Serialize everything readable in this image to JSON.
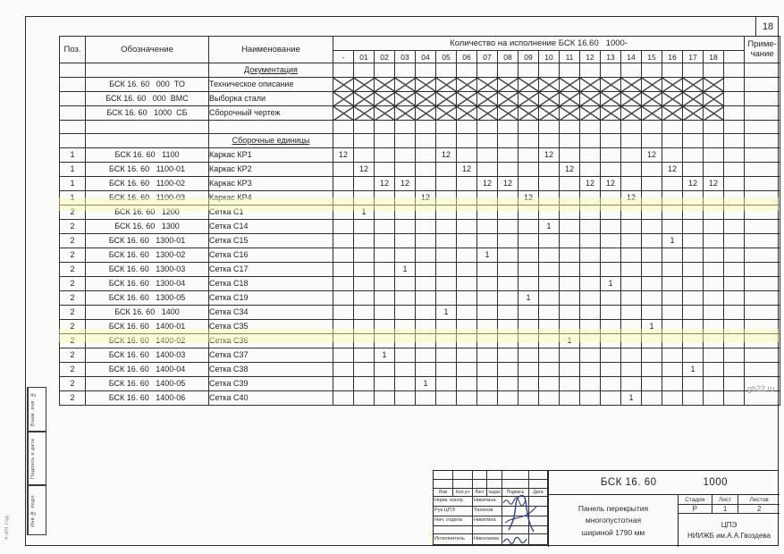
{
  "page": {
    "number": "18",
    "watermark": "gb22.ru",
    "corner_text": "4-вN год."
  },
  "side_stamp": {
    "box1": "Взам. инв. №",
    "box2": "Подпись и дата",
    "box3": "Инв.№ подл."
  },
  "table": {
    "headers": {
      "pos": "Поз.",
      "designation": "Обозначение",
      "name": "Наименование",
      "qty_group": "Количество на исполнение БСК 16.60   1000-",
      "note": "Приме-\nчание"
    },
    "qty_columns": [
      "-",
      "01",
      "02",
      "03",
      "04",
      "05",
      "06",
      "07",
      "08",
      "09",
      "10",
      "11",
      "12",
      "13",
      "14",
      "15",
      "16",
      "17",
      "18",
      ""
    ],
    "rows": [
      {
        "pos": "",
        "designation": "",
        "name": "Документация",
        "section": true
      },
      {
        "pos": "",
        "designation": "БСК 16. 60   000  ТО",
        "name": "Техническое описание",
        "crossed": true
      },
      {
        "pos": "",
        "designation": "БСК 16. 60   000  ВМС",
        "name": "Выборка стали",
        "crossed": true
      },
      {
        "pos": "",
        "designation": "БСК 16. 60   1000  СБ",
        "name": "Сборочный чертеж",
        "crossed": true
      },
      {
        "pos": "",
        "designation": "",
        "name": ""
      },
      {
        "pos": "",
        "designation": "",
        "name": "Сборочные единицы",
        "section": true
      },
      {
        "pos": "1",
        "designation": "БСК 16. 60   1100",
        "name": "Каркас КР1",
        "qty": {
          "-": "12",
          "05": "12",
          "10": "12",
          "15": "12"
        }
      },
      {
        "pos": "1",
        "designation": "БСК 16. 60   1100-01",
        "name": "Каркас КР2",
        "qty": {
          "01": "12",
          "06": "12",
          "11": "12",
          "16": "12"
        }
      },
      {
        "pos": "1",
        "designation": "БСК 16. 60   1100-02",
        "name": "Каркас КР3",
        "qty": {
          "02": "12",
          "03": "12",
          "07": "12",
          "08": "12",
          "12": "12",
          "13": "12",
          "17": "12",
          "18": "12"
        }
      },
      {
        "pos": "1",
        "designation": "БСК 16. 60   1100-03",
        "name": "Каркас КР4",
        "qty": {
          "04": "12",
          "09": "12",
          "14": "12"
        }
      },
      {
        "pos": "2",
        "designation": "БСК 16. 60   1200",
        "name": "Сетка С1",
        "qty": {
          "01": "1"
        }
      },
      {
        "pos": "2",
        "designation": "БСК 16. 60   1300",
        "name": "Сетка С14",
        "qty": {
          "10": "1"
        }
      },
      {
        "pos": "2",
        "designation": "БСК 16. 60   1300-01",
        "name": "Сетка С15",
        "qty": {
          "16": "1"
        }
      },
      {
        "pos": "2",
        "designation": "БСК 16. 60   1300-02",
        "name": "Сетка С16",
        "qty": {
          "07": "1"
        }
      },
      {
        "pos": "2",
        "designation": "БСК 16. 60   1300-03",
        "name": "Сетка С17",
        "qty": {
          "03": "1"
        }
      },
      {
        "pos": "2",
        "designation": "БСК 16. 60   1300-04",
        "name": "Сетка С18",
        "qty": {
          "13": "1"
        }
      },
      {
        "pos": "2",
        "designation": "БСК 16. 60   1300-05",
        "name": "Сетка С19",
        "qty": {
          "09": "1"
        }
      },
      {
        "pos": "2",
        "designation": "БСК 16. 60   1400",
        "name": "Сетка С34",
        "qty": {
          "05": "1"
        }
      },
      {
        "pos": "2",
        "designation": "БСК 16. 60   1400-01",
        "name": "Сетка С35",
        "qty": {
          "15": "1"
        }
      },
      {
        "pos": "2",
        "designation": "БСК 16. 60   1400-02",
        "name": "Сетка С36",
        "qty": {
          "11": "1"
        }
      },
      {
        "pos": "2",
        "designation": "БСК 16. 60   1400-03",
        "name": "Сетка С37",
        "qty": {
          "02": "1"
        }
      },
      {
        "pos": "2",
        "designation": "БСК 16. 60   1400-04",
        "name": "Сетка С38",
        "qty": {
          "17": "1"
        }
      },
      {
        "pos": "2",
        "designation": "БСК 16. 60   1400-05",
        "name": "Сетка С39",
        "qty": {
          "04": "1"
        }
      },
      {
        "pos": "2",
        "designation": "БСК 16. 60   1400-06",
        "name": "Сетка С40",
        "qty": {
          "14": "1"
        }
      }
    ]
  },
  "title_block": {
    "doc_code": "БСК 16. 60",
    "doc_code2": "1000",
    "title": "Панель перекрытия\nмногопустотная\nшириной  1790 мм",
    "header_cells": [
      "Изм",
      "Кол.уч",
      "Лист",
      "№док",
      "Подпись",
      "Дата"
    ],
    "sign_rows": [
      {
        "role": "Норм. контр.",
        "name": "Никитина"
      },
      {
        "role": "Рук.ЦПЭ",
        "name": "Тихонов"
      },
      {
        "role": "Нач. отдела",
        "name": "Никитина"
      },
      {
        "role": "",
        "name": ""
      },
      {
        "role": "Исполнитель",
        "name": "Николаева"
      }
    ],
    "stage_header": [
      "Стадия",
      "Лист",
      "Листов"
    ],
    "stage_values": [
      "Р",
      "1",
      "2"
    ],
    "org": "ЦПЭ\nНИИЖБ им.А.А.Гвоздева"
  }
}
